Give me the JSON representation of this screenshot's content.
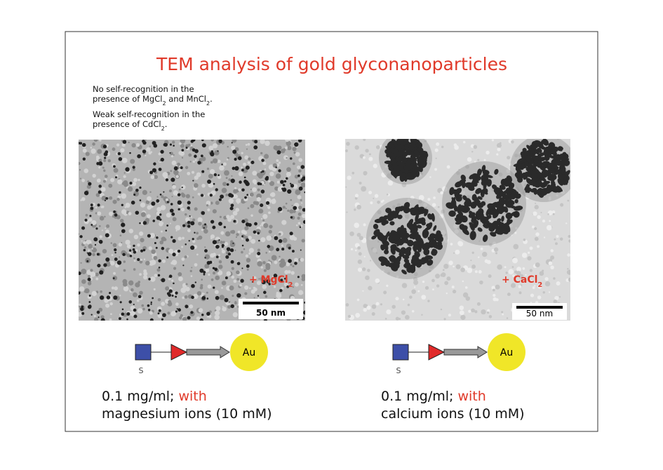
{
  "title": "TEM analysis of gold glyconanoparticles",
  "notes": [
    [
      [
        "No self-recognition in the"
      ],
      [
        "presence of MgCl",
        "2",
        " and MnCl",
        "2",
        "."
      ]
    ],
    [
      [
        "Weak self-recognition in the"
      ],
      [
        "presence of CdCl",
        "2",
        "."
      ]
    ]
  ],
  "panels": [
    {
      "label": [
        "+ MgCl",
        "2"
      ],
      "scale": "50 nm",
      "sugar": "S",
      "core": "Au",
      "caption": {
        "lead": "0.1 mg/ml; ",
        "highlight": "with",
        "line2": "magnesium ions (10 mM)"
      }
    },
    {
      "label": [
        "+ CaCl",
        "2"
      ],
      "scale": "50 nm",
      "sugar": "S",
      "core": "Au",
      "caption": {
        "lead": "0.1 mg/ml; ",
        "highlight": "with",
        "line2": "calcium ions (10 mM)"
      }
    }
  ]
}
